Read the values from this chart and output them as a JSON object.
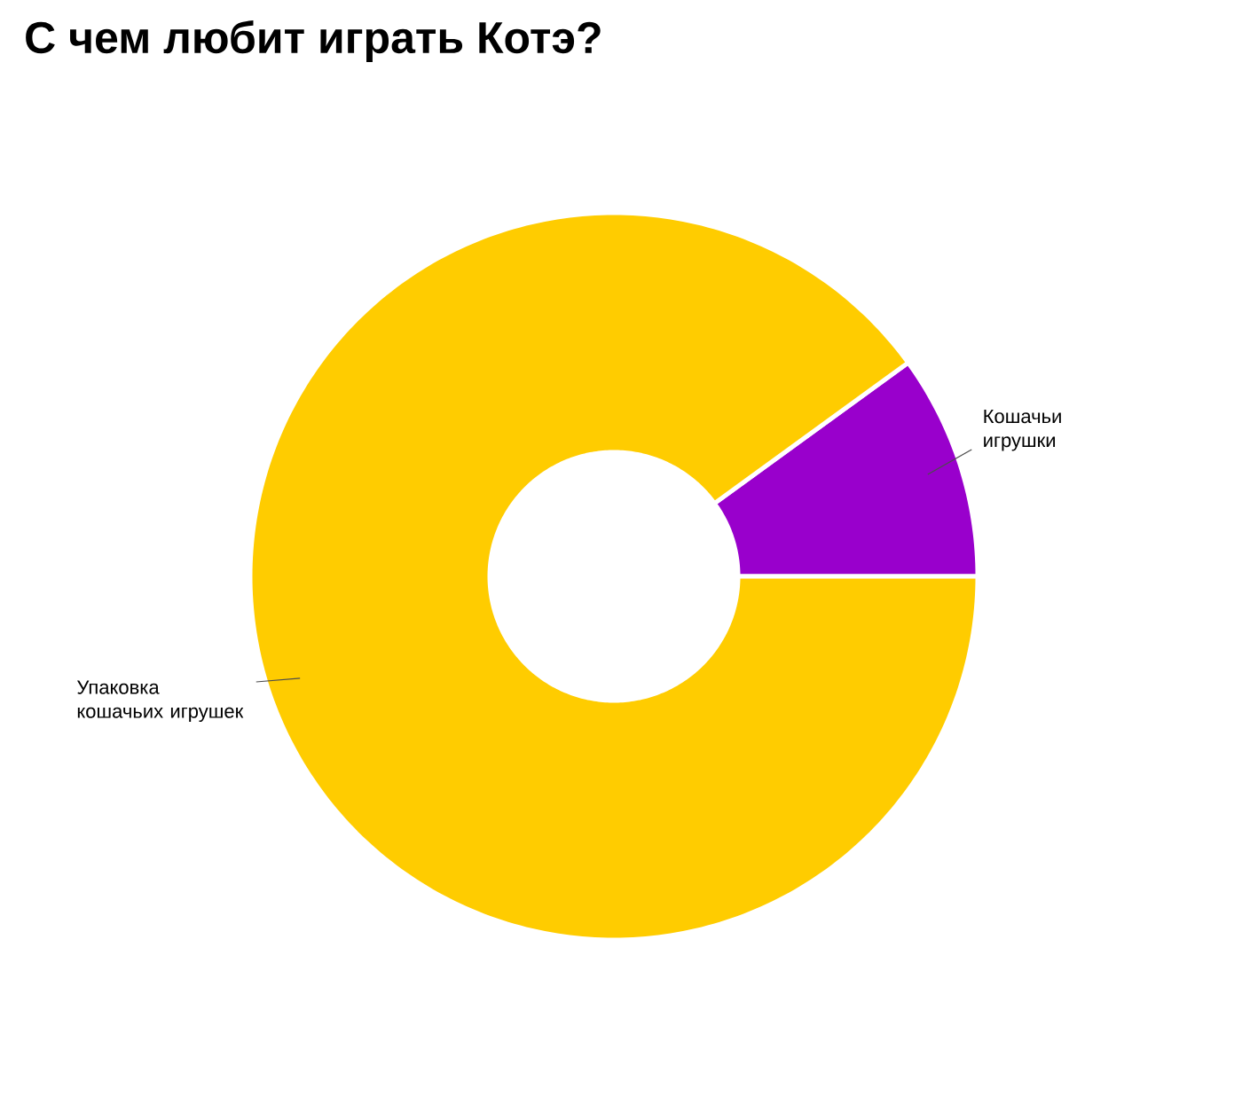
{
  "chart_data": {
    "type": "donut",
    "title": "С чем любит играть Котэ?",
    "categories": [
      "Кошачьи игрушки",
      "Упаковка кошачьих игрушек"
    ],
    "values": [
      10,
      90
    ],
    "colors": [
      "#9900cc",
      "#ffcc00"
    ],
    "legend": false
  }
}
